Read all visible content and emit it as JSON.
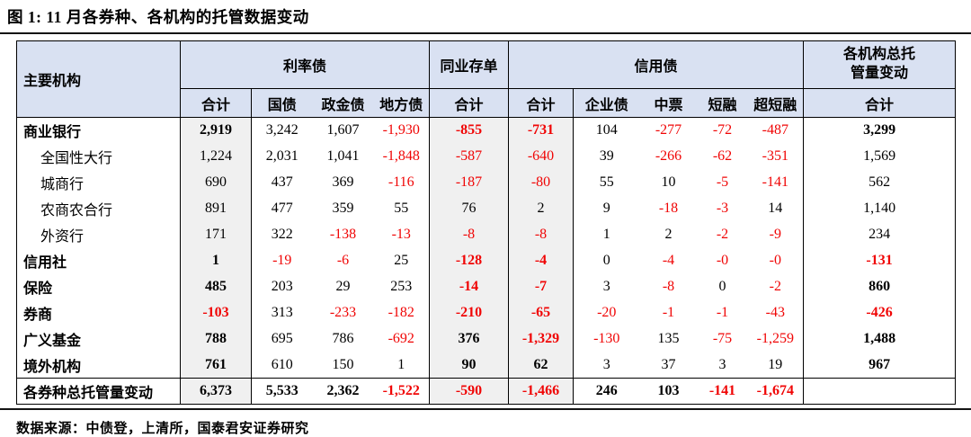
{
  "figure": {
    "title": "图 1: 11 月各券种、各机构的托管数据变动",
    "source_note": "数据来源：中债登，上清所，国泰君安证券研究"
  },
  "colors": {
    "header_bg": "#d9e1f2",
    "summary_col_bg": "#f0f0f0",
    "negative_text": "#f00505",
    "border": "#000000"
  },
  "table": {
    "corner_header": "主要机构",
    "groups": {
      "rate_bonds": "利率债",
      "ncd": "同业存单",
      "credit_bonds": "信用债",
      "total_by_institution": "各机构总托\n管量变动"
    },
    "subheaders": [
      "合计",
      "国债",
      "政金债",
      "地方债",
      "合计",
      "合计",
      "企业债",
      "中票",
      "短融",
      "超短融",
      "合计"
    ],
    "rows": [
      {
        "label": "商业银行",
        "level": "main",
        "values": [
          "2,919",
          "3,242",
          "1,607",
          "-1,930",
          "-855",
          "-731",
          "104",
          "-277",
          "-72",
          "-487",
          "3,299"
        ]
      },
      {
        "label": "全国性大行",
        "level": "sub",
        "values": [
          "1,224",
          "2,031",
          "1,041",
          "-1,848",
          "-587",
          "-640",
          "39",
          "-266",
          "-62",
          "-351",
          "1,569"
        ]
      },
      {
        "label": "城商行",
        "level": "sub",
        "values": [
          "690",
          "437",
          "369",
          "-116",
          "-187",
          "-80",
          "55",
          "10",
          "-5",
          "-141",
          "562"
        ]
      },
      {
        "label": "农商农合行",
        "level": "sub",
        "values": [
          "891",
          "477",
          "359",
          "55",
          "76",
          "2",
          "9",
          "-18",
          "-3",
          "14",
          "1,140"
        ]
      },
      {
        "label": "外资行",
        "level": "sub",
        "values": [
          "171",
          "322",
          "-138",
          "-13",
          "-8",
          "-8",
          "1",
          "2",
          "-2",
          "-9",
          "234"
        ]
      },
      {
        "label": "信用社",
        "level": "main",
        "values": [
          "1",
          "-19",
          "-6",
          "25",
          "-128",
          "-4",
          "0",
          "-4",
          "-0",
          "-0",
          "-131"
        ]
      },
      {
        "label": "保险",
        "level": "main",
        "values": [
          "485",
          "203",
          "29",
          "253",
          "-14",
          "-7",
          "3",
          "-8",
          "0",
          "-2",
          "860"
        ]
      },
      {
        "label": "券商",
        "level": "main",
        "values": [
          "-103",
          "313",
          "-233",
          "-182",
          "-210",
          "-65",
          "-20",
          "-1",
          "-1",
          "-43",
          "-426"
        ]
      },
      {
        "label": "广义基金",
        "level": "main",
        "values": [
          "788",
          "695",
          "786",
          "-692",
          "376",
          "-1,329",
          "-130",
          "135",
          "-75",
          "-1,259",
          "1,488"
        ]
      },
      {
        "label": "境外机构",
        "level": "main",
        "values": [
          "761",
          "610",
          "150",
          "1",
          "90",
          "62",
          "3",
          "37",
          "3",
          "19",
          "967"
        ]
      },
      {
        "label": "各券种总托管量变动",
        "level": "total",
        "values": [
          "6,373",
          "5,533",
          "2,362",
          "-1,522",
          "-590",
          "-1,466",
          "246",
          "103",
          "-141",
          "-1,674",
          ""
        ]
      }
    ]
  }
}
